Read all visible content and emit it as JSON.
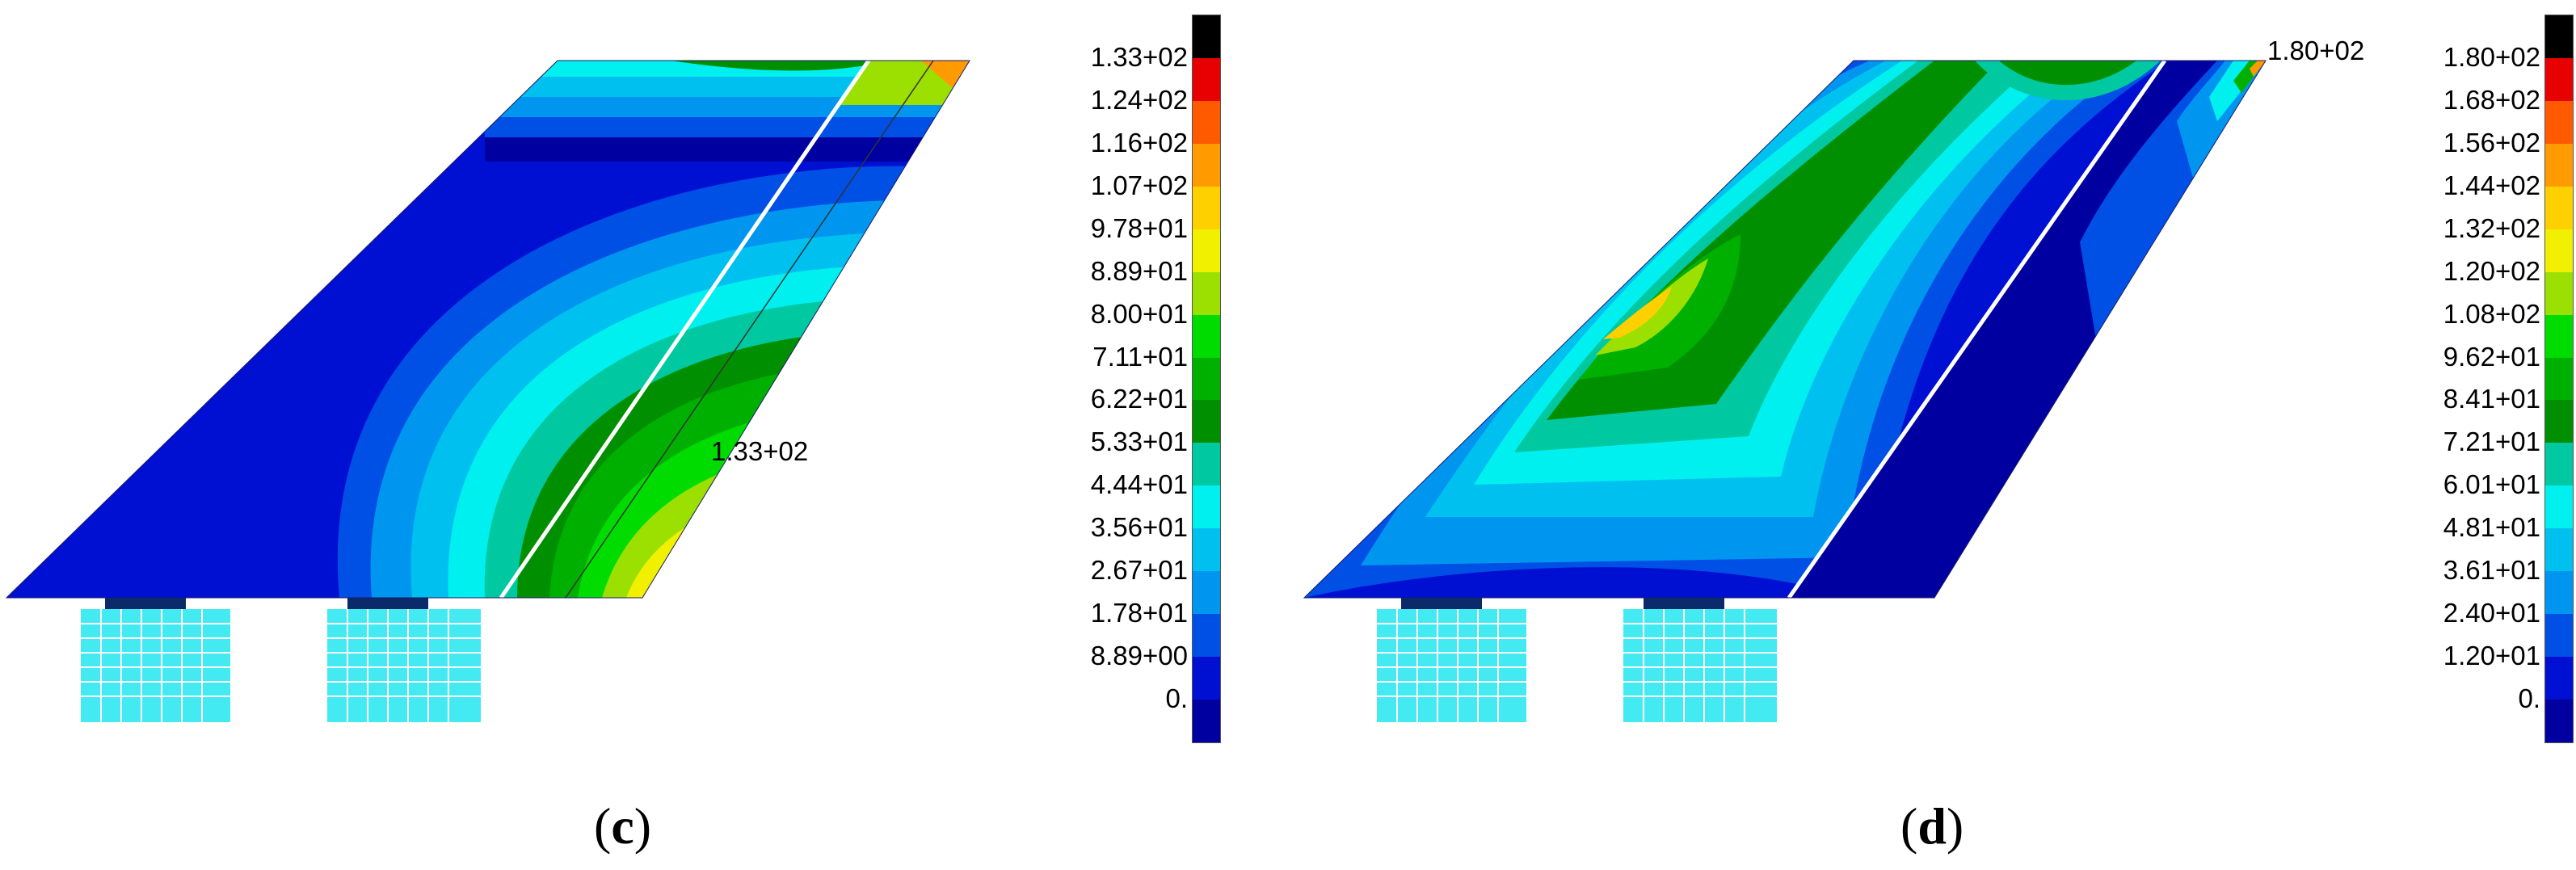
{
  "panels": [
    {
      "id": "c",
      "caption_open": "(",
      "caption_letter": "c",
      "caption_close": ")",
      "max_annotation": "1.33+02",
      "legend_ticks": [
        "1.33+02",
        "1.24+02",
        "1.16+02",
        "1.07+02",
        "9.78+01",
        "8.89+01",
        "8.00+01",
        "7.11+01",
        "6.22+01",
        "5.33+01",
        "4.44+01",
        "3.56+01",
        "2.67+01",
        "1.78+01",
        "8.89+00",
        "0."
      ]
    },
    {
      "id": "d",
      "caption_open": "(",
      "caption_letter": "d",
      "caption_close": ")",
      "max_annotation": "1.80+02",
      "legend_ticks": [
        "1.80+02",
        "1.68+02",
        "1.56+02",
        "1.44+02",
        "1.32+02",
        "1.20+02",
        "1.08+02",
        "9.62+01",
        "8.41+01",
        "7.21+01",
        "6.01+01",
        "4.81+01",
        "3.61+01",
        "2.40+01",
        "1.20+01",
        "0."
      ]
    }
  ],
  "colormap": [
    "#000000",
    "#e60000",
    "#ff5a00",
    "#ff9a00",
    "#ffd000",
    "#f0f000",
    "#9be000",
    "#00dc00",
    "#00b000",
    "#008f00",
    "#00c8a0",
    "#00f0f0",
    "#00c0f0",
    "#0096f0",
    "#0050e6",
    "#0010d2",
    "#0000a0"
  ]
}
